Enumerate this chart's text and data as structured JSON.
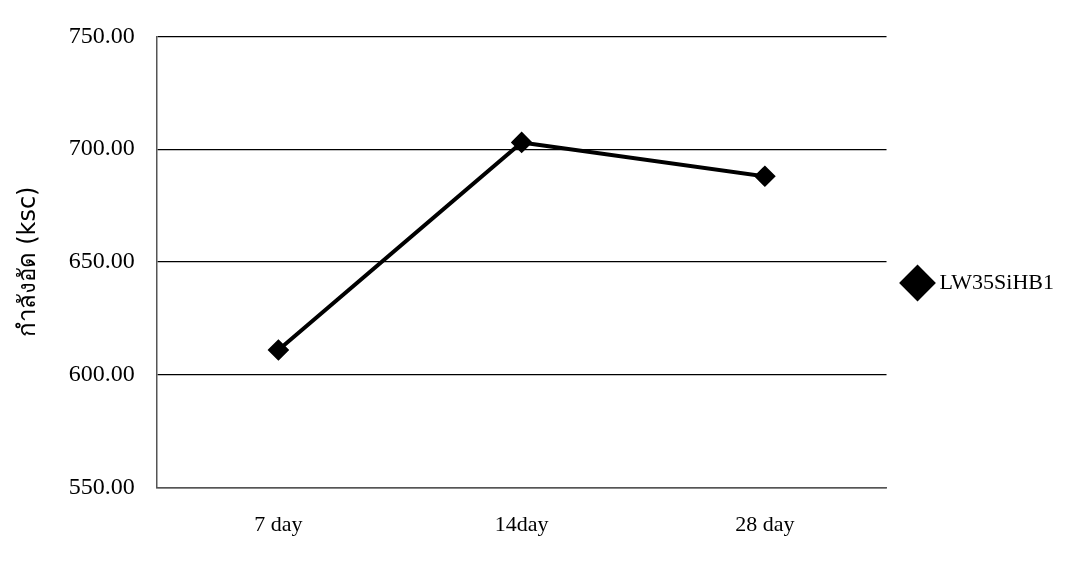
{
  "chart_data": {
    "type": "line",
    "categories": [
      "7 day",
      "14day",
      "28 day"
    ],
    "series": [
      {
        "name": "LW35SiHB1",
        "color": "#000000",
        "values": [
          611,
          703,
          688
        ]
      }
    ],
    "ylabel": "กำลังอัด (ksc)",
    "ylim": [
      550,
      750
    ],
    "yticks": [
      {
        "value": 550,
        "label": "550.00"
      },
      {
        "value": 600,
        "label": "600.00"
      },
      {
        "value": 650,
        "label": "650.00"
      },
      {
        "value": 700,
        "label": "700.00"
      },
      {
        "value": 750,
        "label": "750.00"
      }
    ],
    "grid": "y",
    "legend": "right",
    "marker": "diamond",
    "line_style": "solid"
  }
}
